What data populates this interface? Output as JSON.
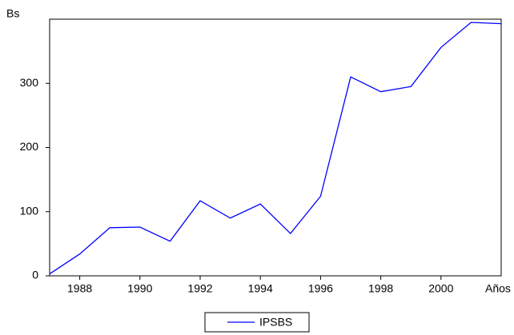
{
  "chart_data": {
    "type": "line",
    "y_label": "Bs",
    "x_label": "Años",
    "x": [
      1987,
      1988,
      1989,
      1990,
      1991,
      1992,
      1993,
      1994,
      1995,
      1996,
      1997,
      1998,
      1999,
      2000,
      2001,
      2002
    ],
    "series": [
      {
        "name": "IPSBS",
        "color": "#0000ff",
        "values": [
          3,
          34,
          75,
          76,
          54,
          117,
          90,
          112,
          66,
          124,
          310,
          287,
          295,
          356,
          395,
          393
        ]
      }
    ],
    "xlim": [
      1987,
      2002
    ],
    "xticks": [
      1988,
      1990,
      1992,
      1994,
      1996,
      1998,
      2000
    ],
    "ylim": [
      0,
      400
    ],
    "yticks": [
      0,
      100,
      200,
      300
    ],
    "legend": "bottom"
  }
}
